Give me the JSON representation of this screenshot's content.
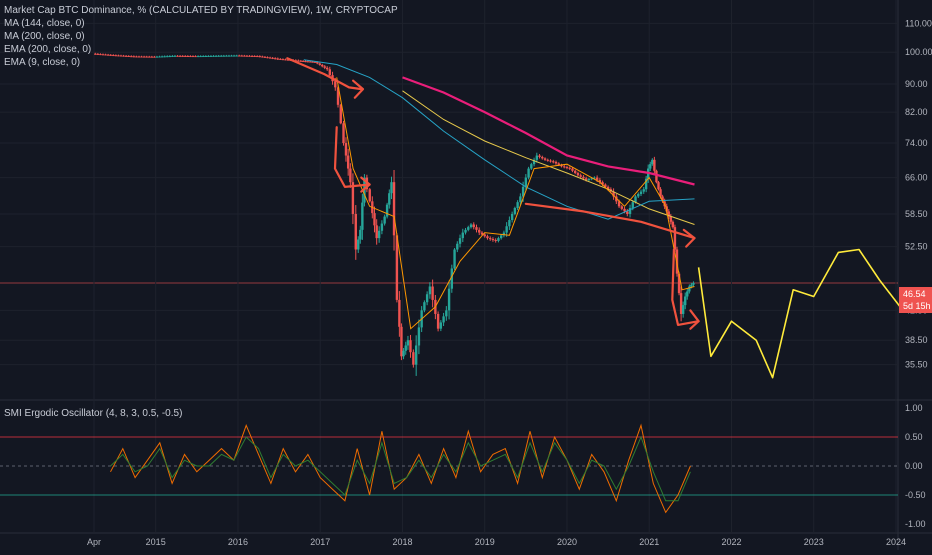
{
  "header": {
    "title": "Market Cap BTC Dominance, % (CALCULATED BY TRADINGVIEW), 1W, CRYPTOCAP",
    "indicators": [
      "MA (144, close, 0)",
      "MA (200, close, 0)",
      "EMA (200, close, 0)",
      "EMA (9, close, 0)"
    ]
  },
  "price_tag": {
    "value": "46.54",
    "countdown": "5d 15h"
  },
  "oscillator": {
    "label": "SMI Ergodic Oscillator (4, 8, 3, 0.5, -0.5)",
    "yticks": [
      "1.00",
      "0.50",
      "0.00",
      "-0.50",
      "-1.00"
    ]
  },
  "colors": {
    "background": "#131722",
    "up": "#26a69a",
    "down": "#ef5350",
    "annotation_red": "#f0523e",
    "annotation_pink": "#e91e7a",
    "forecast_yellow": "#ffeb3b",
    "ma_yellow": "#e6c84b",
    "ma_teal": "#26a3c6"
  },
  "chart_data": [
    {
      "type": "candlestick",
      "title": "Market Cap BTC Dominance, % (CALCULATED BY TRADINGVIEW), 1W, CRYPTOCAP",
      "xlabel": "",
      "ylabel": "",
      "x_ticks": [
        "Apr",
        "2015",
        "2016",
        "2017",
        "2018",
        "2019",
        "2020",
        "2021",
        "2022",
        "2023",
        "2024"
      ],
      "y_ticks": [
        "110.00",
        "100.00",
        "90.00",
        "82.00",
        "74.00",
        "66.00",
        "58.50",
        "52.50",
        "46.54",
        "42.50",
        "38.50",
        "35.50"
      ],
      "y_scale": "log",
      "ylim": [
        32,
        112
      ],
      "xlim": [
        2014.2,
        2024.1
      ],
      "current_value": 46.54,
      "price_series": {
        "name": "",
        "x": [
          2014.25,
          2014.5,
          2014.75,
          2015.0,
          2015.25,
          2015.5,
          2015.75,
          2016.0,
          2016.25,
          2016.5,
          2016.75,
          2016.95,
          2017.1,
          2017.2,
          2017.3,
          2017.38,
          2017.45,
          2017.5,
          2017.55,
          2017.62,
          2017.7,
          2017.8,
          2017.88,
          2017.95,
          2018.0,
          2018.08,
          2018.15,
          2018.25,
          2018.35,
          2018.45,
          2018.55,
          2018.65,
          2018.75,
          2018.85,
          2018.95,
          2019.05,
          2019.15,
          2019.25,
          2019.35,
          2019.45,
          2019.55,
          2019.65,
          2019.75,
          2019.85,
          2019.95,
          2020.05,
          2020.15,
          2020.25,
          2020.35,
          2020.45,
          2020.55,
          2020.65,
          2020.75,
          2020.85,
          2020.95,
          2021.0,
          2021.05,
          2021.1,
          2021.15,
          2021.2,
          2021.25,
          2021.3,
          2021.35,
          2021.4,
          2021.45,
          2021.5,
          2021.55
        ],
        "values": [
          99.5,
          99.0,
          98.6,
          98.5,
          98.8,
          98.7,
          98.8,
          98.9,
          98.7,
          97.8,
          97.2,
          96.8,
          94.5,
          89.0,
          74.0,
          65.0,
          52.0,
          55.5,
          66.0,
          61.0,
          54.0,
          58.0,
          65.0,
          44.0,
          36.5,
          38.5,
          35.5,
          42.5,
          46.0,
          40.0,
          42.5,
          52.0,
          55.0,
          56.5,
          55.0,
          54.0,
          53.5,
          55.0,
          58.5,
          62.0,
          68.0,
          71.0,
          70.0,
          69.5,
          68.5,
          68.0,
          66.5,
          65.5,
          66.0,
          64.5,
          63.0,
          60.0,
          58.5,
          62.0,
          63.5,
          68.0,
          70.0,
          65.0,
          62.0,
          60.0,
          58.0,
          56.0,
          48.0,
          42.0,
          44.5,
          46.0,
          46.54
        ]
      },
      "moving_averages": [
        {
          "name": "MA (144, close, 0)",
          "x": [
            2018.0,
            2018.5,
            2019.0,
            2019.5,
            2020.0,
            2020.5,
            2021.0,
            2021.55
          ],
          "values": [
            88.0,
            80.0,
            74.5,
            70.5,
            67.0,
            63.5,
            59.5,
            56.5
          ]
        },
        {
          "name": "MA (200, close, 0)",
          "x": [
            2018.0,
            2018.5,
            2019.0,
            2019.5,
            2020.0,
            2020.5,
            2021.0,
            2021.55
          ],
          "values": [
            92.0,
            87.5,
            82.0,
            76.5,
            71.0,
            68.5,
            67.0,
            64.5
          ]
        },
        {
          "name": "EMA (200, close, 0)",
          "x": [
            2016.8,
            2017.2,
            2017.6,
            2018.0,
            2018.5,
            2019.0,
            2019.5,
            2020.0,
            2020.5,
            2021.0,
            2021.55
          ],
          "values": [
            97.5,
            96.0,
            92.0,
            86.0,
            77.0,
            70.0,
            64.0,
            60.0,
            57.5,
            61.0,
            61.5
          ]
        },
        {
          "name": "EMA (9, close, 0)",
          "x": [
            2017.2,
            2017.4,
            2017.6,
            2017.9,
            2018.1,
            2018.4,
            2018.7,
            2019.0,
            2019.3,
            2019.6,
            2020.0,
            2020.4,
            2020.7,
            2021.0,
            2021.2,
            2021.4,
            2021.55
          ],
          "values": [
            92.0,
            68.0,
            60.0,
            58.0,
            40.0,
            43.0,
            50.0,
            55.0,
            54.5,
            68.0,
            69.0,
            65.0,
            60.0,
            66.0,
            60.0,
            45.5,
            46.0
          ]
        }
      ],
      "forecast": {
        "x": [
          2021.6,
          2021.75,
          2022.0,
          2022.3,
          2022.5,
          2022.75,
          2023.0,
          2023.3,
          2023.55,
          2023.8,
          2024.05
        ],
        "values": [
          49.0,
          36.5,
          41.0,
          38.5,
          34.0,
          45.5,
          44.5,
          51.5,
          52.0,
          47.0,
          43.0
        ]
      },
      "grid": true
    },
    {
      "type": "line",
      "title": "SMI Ergodic Oscillator (4, 8, 3, 0.5, -0.5)",
      "xlabel": "",
      "ylabel": "",
      "ylim": [
        -1.0,
        1.0
      ],
      "levels": [
        0.5,
        0.0,
        -0.5
      ],
      "x": [
        2014.45,
        2014.6,
        2014.75,
        2014.9,
        2015.05,
        2015.2,
        2015.35,
        2015.5,
        2015.65,
        2015.8,
        2015.95,
        2016.1,
        2016.25,
        2016.4,
        2016.55,
        2016.7,
        2016.85,
        2017.0,
        2017.15,
        2017.3,
        2017.45,
        2017.6,
        2017.75,
        2017.9,
        2018.05,
        2018.2,
        2018.35,
        2018.5,
        2018.65,
        2018.8,
        2018.95,
        2019.1,
        2019.25,
        2019.4,
        2019.55,
        2019.7,
        2019.85,
        2020.0,
        2020.15,
        2020.3,
        2020.45,
        2020.6,
        2020.75,
        2020.9,
        2021.05,
        2021.2,
        2021.35,
        2021.5
      ],
      "series": [
        {
          "name": "",
          "values": [
            -0.1,
            0.3,
            -0.2,
            0.1,
            0.4,
            -0.3,
            0.2,
            -0.1,
            0.1,
            0.3,
            0.1,
            0.7,
            0.2,
            -0.3,
            0.3,
            -0.1,
            0.2,
            -0.2,
            -0.4,
            -0.6,
            0.3,
            -0.5,
            0.6,
            -0.4,
            -0.2,
            0.2,
            -0.3,
            0.3,
            -0.2,
            0.6,
            -0.1,
            0.2,
            0.3,
            -0.3,
            0.6,
            -0.2,
            0.5,
            0.1,
            -0.4,
            0.2,
            -0.1,
            -0.6,
            0.1,
            0.7,
            -0.3,
            -0.8,
            -0.5,
            0.0
          ]
        },
        {
          "name": "",
          "values": [
            0.0,
            0.2,
            -0.1,
            0.0,
            0.3,
            -0.2,
            0.1,
            0.0,
            0.0,
            0.2,
            0.1,
            0.5,
            0.3,
            -0.2,
            0.2,
            0.0,
            0.1,
            -0.1,
            -0.3,
            -0.5,
            0.1,
            -0.3,
            0.4,
            -0.3,
            -0.2,
            0.1,
            -0.2,
            0.2,
            -0.1,
            0.4,
            0.0,
            0.1,
            0.2,
            -0.2,
            0.4,
            -0.1,
            0.4,
            0.1,
            -0.3,
            0.1,
            0.0,
            -0.4,
            0.0,
            0.5,
            -0.1,
            -0.6,
            -0.6,
            -0.1
          ]
        }
      ],
      "grid": true
    }
  ]
}
